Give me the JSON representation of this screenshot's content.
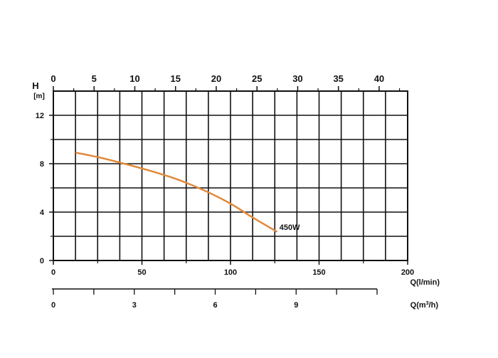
{
  "chart_data": {
    "type": "line",
    "title": "",
    "ylabel": "H",
    "yunit": "[m]",
    "xlabel": "Q(l/min)",
    "top_axis": {
      "label": "",
      "ticks": [
        0,
        5,
        10,
        15,
        20,
        25,
        30,
        35,
        40
      ],
      "range": [
        0,
        43.5
      ]
    },
    "x_axis": {
      "ticks": [
        0,
        50,
        100,
        150,
        200
      ],
      "range": [
        0,
        200
      ]
    },
    "y_axis": {
      "ticks": [
        0,
        4,
        8,
        12
      ],
      "range": [
        0,
        14
      ]
    },
    "secondary_axis": {
      "label_prefix": "Q(m",
      "label_sup": "3",
      "label_suffix": "/h)",
      "ticks": [
        0,
        3,
        6,
        9
      ],
      "range": [
        0,
        12
      ]
    },
    "grid": true,
    "series": [
      {
        "name": "450W",
        "color": "#e08a3c",
        "x": [
          13,
          25,
          40,
          55,
          70,
          85,
          100,
          112,
          126
        ],
        "y": [
          8.9,
          8.55,
          8.0,
          7.4,
          6.7,
          5.8,
          4.7,
          3.6,
          2.4
        ]
      }
    ]
  }
}
